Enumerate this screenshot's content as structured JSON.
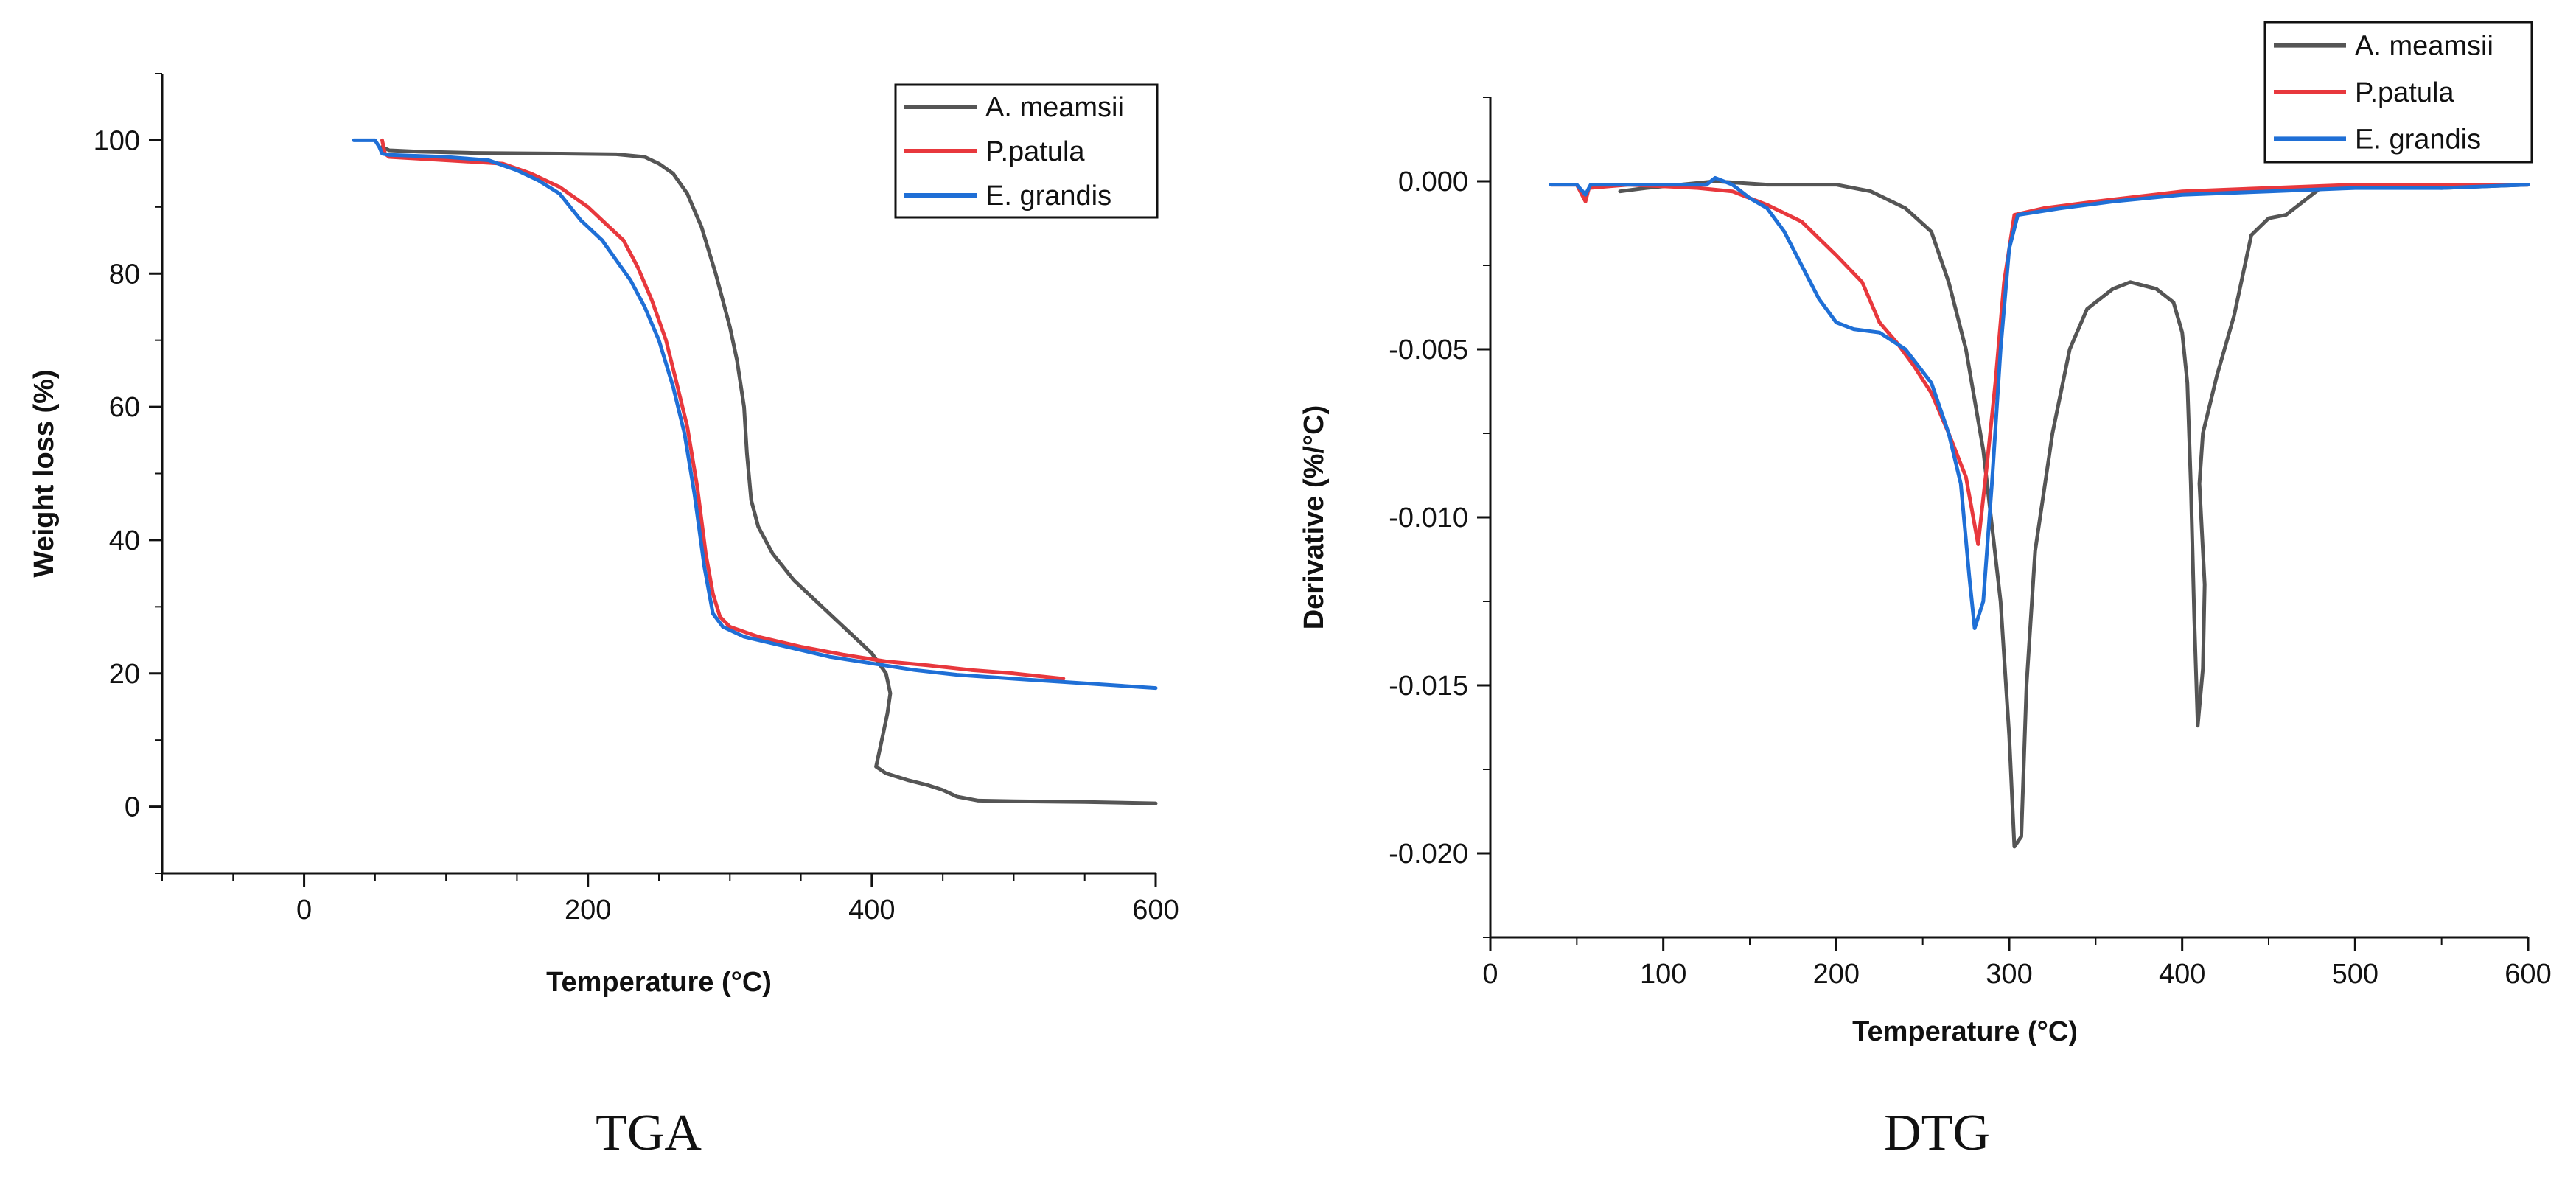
{
  "chart_data": [
    {
      "type": "line",
      "caption": "TGA",
      "xlabel": "Temperature (°C)",
      "ylabel": "Weight loss (%)",
      "xlim": [
        -100,
        600
      ],
      "ylim": [
        -10,
        110
      ],
      "xticks": [
        0,
        200,
        400,
        600
      ],
      "yticks": [
        0,
        20,
        40,
        60,
        80,
        100
      ],
      "legend_position": "top-right",
      "series": [
        {
          "name": "A. meamsii",
          "color": "#555555",
          "points": [
            [
              55,
              99
            ],
            [
              60,
              98.5
            ],
            [
              80,
              98.3
            ],
            [
              120,
              98.1
            ],
            [
              180,
              98
            ],
            [
              220,
              97.9
            ],
            [
              240,
              97.5
            ],
            [
              250,
              96.5
            ],
            [
              260,
              95
            ],
            [
              270,
              92
            ],
            [
              280,
              87
            ],
            [
              290,
              80
            ],
            [
              300,
              72
            ],
            [
              305,
              67
            ],
            [
              310,
              60
            ],
            [
              312,
              53
            ],
            [
              315,
              46
            ],
            [
              320,
              42
            ],
            [
              330,
              38
            ],
            [
              345,
              34
            ],
            [
              360,
              31
            ],
            [
              375,
              28
            ],
            [
              390,
              25
            ],
            [
              400,
              23
            ],
            [
              410,
              20
            ],
            [
              413,
              17
            ],
            [
              411,
              14
            ],
            [
              408,
              11
            ],
            [
              405,
              8
            ],
            [
              403,
              6
            ],
            [
              410,
              5
            ],
            [
              425,
              4
            ],
            [
              440,
              3.2
            ],
            [
              450,
              2.5
            ],
            [
              460,
              1.5
            ],
            [
              475,
              0.9
            ],
            [
              500,
              0.8
            ],
            [
              550,
              0.7
            ],
            [
              600,
              0.5
            ]
          ]
        },
        {
          "name": "P.patula",
          "color": "#e8383d",
          "points": [
            [
              55,
              100
            ],
            [
              57,
              98
            ],
            [
              60,
              97.5
            ],
            [
              100,
              97
            ],
            [
              140,
              96.5
            ],
            [
              160,
              95
            ],
            [
              180,
              93
            ],
            [
              200,
              90
            ],
            [
              215,
              87
            ],
            [
              225,
              85
            ],
            [
              235,
              81
            ],
            [
              245,
              76
            ],
            [
              255,
              70
            ],
            [
              262,
              64
            ],
            [
              270,
              57
            ],
            [
              277,
              48
            ],
            [
              283,
              38
            ],
            [
              288,
              32
            ],
            [
              293,
              28.5
            ],
            [
              300,
              27
            ],
            [
              320,
              25.5
            ],
            [
              350,
              24
            ],
            [
              380,
              22.8
            ],
            [
              410,
              21.8
            ],
            [
              440,
              21.2
            ],
            [
              470,
              20.5
            ],
            [
              500,
              20
            ],
            [
              535,
              19.2
            ]
          ]
        },
        {
          "name": "E. grandis",
          "color": "#1f6fd6",
          "points": [
            [
              35,
              100
            ],
            [
              50,
              100
            ],
            [
              53,
              99
            ],
            [
              55,
              98
            ],
            [
              60,
              97.8
            ],
            [
              100,
              97.5
            ],
            [
              130,
              97
            ],
            [
              150,
              95.5
            ],
            [
              165,
              94
            ],
            [
              180,
              92
            ],
            [
              195,
              88
            ],
            [
              210,
              85
            ],
            [
              220,
              82
            ],
            [
              230,
              79
            ],
            [
              240,
              75
            ],
            [
              250,
              70
            ],
            [
              260,
              63
            ],
            [
              268,
              56
            ],
            [
              275,
              47
            ],
            [
              282,
              36
            ],
            [
              288,
              29
            ],
            [
              295,
              27
            ],
            [
              310,
              25.5
            ],
            [
              340,
              24
            ],
            [
              370,
              22.5
            ],
            [
              400,
              21.5
            ],
            [
              430,
              20.5
            ],
            [
              460,
              19.8
            ],
            [
              500,
              19.2
            ],
            [
              550,
              18.5
            ],
            [
              600,
              17.8
            ]
          ]
        }
      ]
    },
    {
      "type": "line",
      "caption": "DTG",
      "xlabel": "Temperature (°C)",
      "ylabel": "Derivative (%/°C)",
      "xlim": [
        0,
        600
      ],
      "ylim": [
        -0.0225,
        0.0025
      ],
      "xticks": [
        0,
        100,
        200,
        300,
        400,
        500,
        600
      ],
      "yticks": [
        0.0,
        -0.005,
        -0.01,
        -0.015,
        -0.02
      ],
      "ytick_labels": [
        "0.000",
        "-0.005",
        "-0.010",
        "-0.015",
        "-0.020"
      ],
      "legend_position": "top-right",
      "series": [
        {
          "name": "A. meamsii",
          "color": "#555555",
          "points": [
            [
              75,
              -0.0003
            ],
            [
              90,
              -0.0002
            ],
            [
              110,
              -0.0001
            ],
            [
              130,
              0
            ],
            [
              160,
              -0.0001
            ],
            [
              200,
              -0.0001
            ],
            [
              220,
              -0.0003
            ],
            [
              240,
              -0.0008
            ],
            [
              255,
              -0.0015
            ],
            [
              265,
              -0.003
            ],
            [
              275,
              -0.005
            ],
            [
              285,
              -0.008
            ],
            [
              295,
              -0.0125
            ],
            [
              300,
              -0.0165
            ],
            [
              303,
              -0.0198
            ],
            [
              307,
              -0.0195
            ],
            [
              310,
              -0.015
            ],
            [
              315,
              -0.011
            ],
            [
              325,
              -0.0075
            ],
            [
              335,
              -0.005
            ],
            [
              345,
              -0.0038
            ],
            [
              360,
              -0.0032
            ],
            [
              370,
              -0.003
            ],
            [
              385,
              -0.0032
            ],
            [
              395,
              -0.0036
            ],
            [
              400,
              -0.0045
            ],
            [
              403,
              -0.006
            ],
            [
              405,
              -0.009
            ],
            [
              407,
              -0.013
            ],
            [
              409,
              -0.0162
            ],
            [
              412,
              -0.0145
            ],
            [
              413,
              -0.012
            ],
            [
              410,
              -0.009
            ],
            [
              412,
              -0.0075
            ],
            [
              420,
              -0.0058
            ],
            [
              430,
              -0.004
            ],
            [
              440,
              -0.0016
            ],
            [
              450,
              -0.0011
            ],
            [
              460,
              -0.001
            ],
            [
              480,
              -0.0002
            ],
            [
              500,
              -0.0001
            ],
            [
              550,
              -0.0002
            ],
            [
              600,
              -0.0001
            ]
          ]
        },
        {
          "name": "P.patula",
          "color": "#e8383d",
          "points": [
            [
              35,
              -0.0001
            ],
            [
              50,
              -0.0001
            ],
            [
              55,
              -0.0006
            ],
            [
              57,
              -0.0002
            ],
            [
              80,
              -0.0001
            ],
            [
              120,
              -0.0002
            ],
            [
              140,
              -0.0003
            ],
            [
              160,
              -0.0007
            ],
            [
              180,
              -0.0012
            ],
            [
              200,
              -0.0022
            ],
            [
              215,
              -0.003
            ],
            [
              225,
              -0.0042
            ],
            [
              235,
              -0.0048
            ],
            [
              245,
              -0.0055
            ],
            [
              255,
              -0.0063
            ],
            [
              265,
              -0.0075
            ],
            [
              275,
              -0.0088
            ],
            [
              282,
              -0.0108
            ],
            [
              287,
              -0.0085
            ],
            [
              292,
              -0.006
            ],
            [
              297,
              -0.003
            ],
            [
              303,
              -0.001
            ],
            [
              320,
              -0.0008
            ],
            [
              350,
              -0.0006
            ],
            [
              400,
              -0.0003
            ],
            [
              450,
              -0.0002
            ],
            [
              500,
              -0.0001
            ],
            [
              600,
              -0.0001
            ]
          ]
        },
        {
          "name": "E. grandis",
          "color": "#1f6fd6",
          "points": [
            [
              35,
              -0.0001
            ],
            [
              50,
              -0.0001
            ],
            [
              55,
              -0.0004
            ],
            [
              58,
              -0.0001
            ],
            [
              100,
              -0.0001
            ],
            [
              125,
              -0.0001
            ],
            [
              130,
              0.0001
            ],
            [
              140,
              -0.0001
            ],
            [
              150,
              -0.0005
            ],
            [
              160,
              -0.0008
            ],
            [
              170,
              -0.0015
            ],
            [
              180,
              -0.0025
            ],
            [
              190,
              -0.0035
            ],
            [
              200,
              -0.0042
            ],
            [
              210,
              -0.0044
            ],
            [
              225,
              -0.0045
            ],
            [
              240,
              -0.005
            ],
            [
              255,
              -0.006
            ],
            [
              265,
              -0.0075
            ],
            [
              272,
              -0.009
            ],
            [
              277,
              -0.0118
            ],
            [
              280,
              -0.0133
            ],
            [
              285,
              -0.0125
            ],
            [
              290,
              -0.009
            ],
            [
              295,
              -0.005
            ],
            [
              300,
              -0.002
            ],
            [
              305,
              -0.001
            ],
            [
              330,
              -0.0008
            ],
            [
              360,
              -0.0006
            ],
            [
              400,
              -0.0004
            ],
            [
              450,
              -0.0003
            ],
            [
              500,
              -0.0002
            ],
            [
              550,
              -0.0002
            ],
            [
              600,
              -0.0001
            ]
          ]
        }
      ]
    }
  ]
}
